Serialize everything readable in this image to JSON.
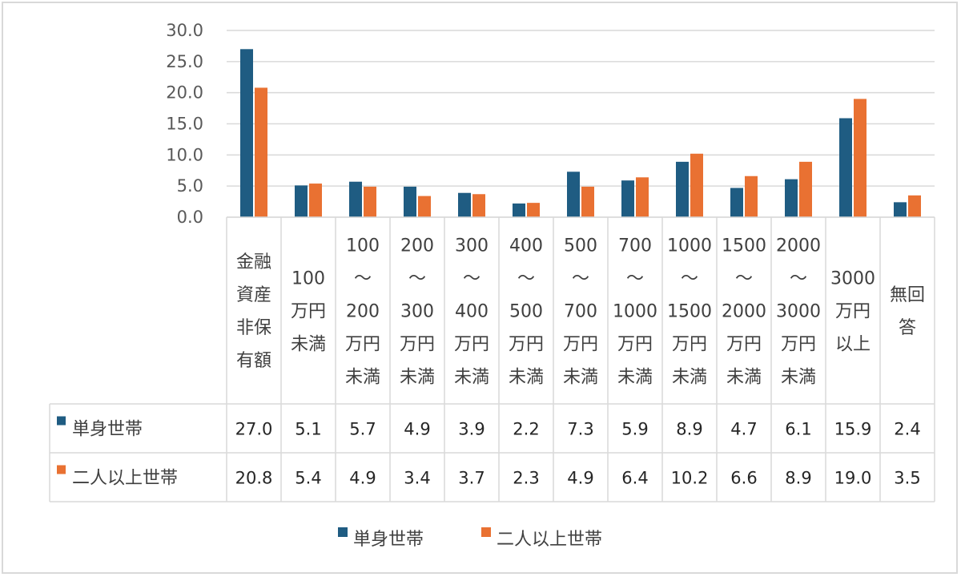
{
  "chart_data": {
    "type": "bar",
    "categories": [
      [
        "金融",
        "資産",
        "非保",
        "有額"
      ],
      [
        "100",
        "万円",
        "未満"
      ],
      [
        "100",
        "～",
        "200",
        "万円",
        "未満"
      ],
      [
        "200",
        "～",
        "300",
        "万円",
        "未満"
      ],
      [
        "300",
        "～",
        "400",
        "万円",
        "未満"
      ],
      [
        "400",
        "～",
        "500",
        "万円",
        "未満"
      ],
      [
        "500",
        "～",
        "700",
        "万円",
        "未満"
      ],
      [
        "700",
        "～",
        "1000",
        "万円",
        "未満"
      ],
      [
        "1000",
        "～",
        "1500",
        "万円",
        "未満"
      ],
      [
        "1500",
        "～",
        "2000",
        "万円",
        "未満"
      ],
      [
        "2000",
        "～",
        "3000",
        "万円",
        "未満"
      ],
      [
        "3000",
        "万円",
        "以上"
      ],
      [
        "無回",
        "答"
      ]
    ],
    "series": [
      {
        "name": "単身世帯",
        "color": "#1f5c82",
        "values": [
          27.0,
          5.1,
          5.7,
          4.9,
          3.9,
          2.2,
          7.3,
          5.9,
          8.9,
          4.7,
          6.1,
          15.9,
          2.4
        ],
        "labels": [
          "27.0",
          "5.1",
          "5.7",
          "4.9",
          "3.9",
          "2.2",
          "7.3",
          "5.9",
          "8.9",
          "4.7",
          "6.1",
          "15.9",
          "2.4"
        ]
      },
      {
        "name": "二人以上世帯",
        "color": "#e97132",
        "values": [
          20.8,
          5.4,
          4.9,
          3.4,
          3.7,
          2.3,
          4.9,
          6.4,
          10.2,
          6.6,
          8.9,
          19.0,
          3.5
        ],
        "labels": [
          "20.8",
          "5.4",
          "4.9",
          "3.4",
          "3.7",
          "2.3",
          "4.9",
          "6.4",
          "10.2",
          "6.6",
          "8.9",
          "19.0",
          "3.5"
        ]
      }
    ],
    "yticks": [
      "0.0",
      "5.0",
      "10.0",
      "15.0",
      "20.0",
      "25.0",
      "30.0"
    ],
    "ylim": [
      0,
      30
    ],
    "grid": true,
    "data_table": true,
    "legend_position": "bottom"
  }
}
